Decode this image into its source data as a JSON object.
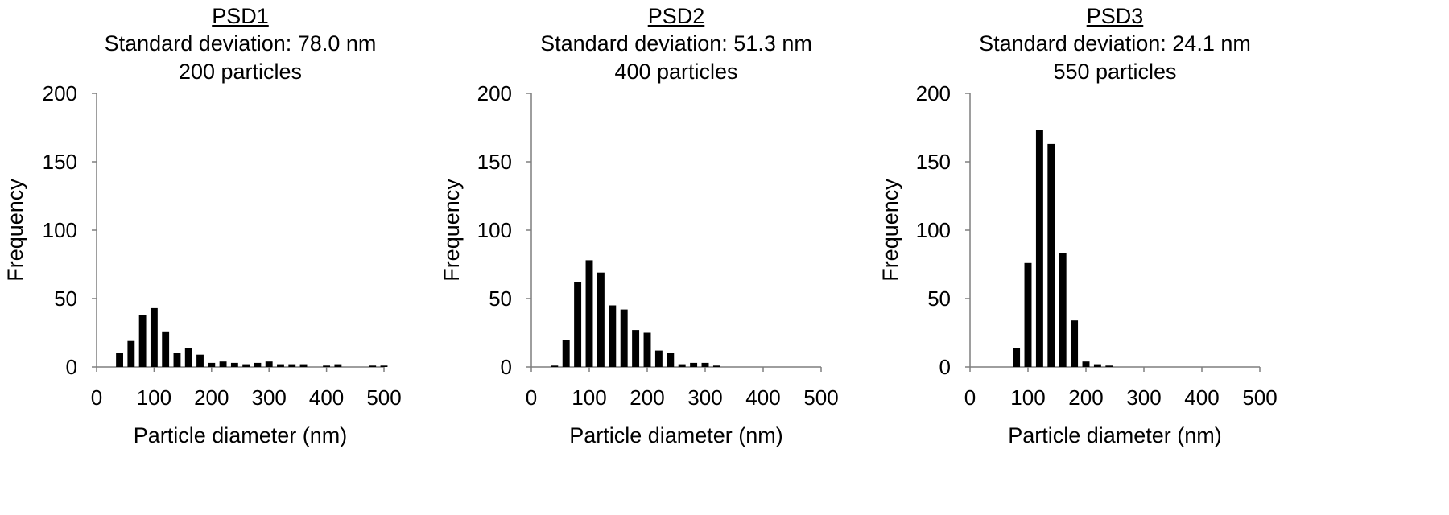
{
  "chart_data": [
    {
      "type": "bar",
      "title": "PSD1",
      "subtitle_lines": [
        "Standard deviation: 78.0 nm",
        "200 particles"
      ],
      "xlabel": "Particle diameter (nm)",
      "ylabel": "Frequency",
      "xlim": [
        0,
        500
      ],
      "ylim": [
        0,
        200
      ],
      "xticks": [
        "0",
        "100",
        "200",
        "300",
        "400",
        "500"
      ],
      "yticks": [
        "0",
        "50",
        "100",
        "150",
        "200"
      ],
      "grid": false,
      "bar_color": "#000000",
      "x": [
        40,
        60,
        80,
        100,
        120,
        140,
        160,
        180,
        200,
        220,
        240,
        260,
        280,
        300,
        320,
        340,
        360,
        380,
        400,
        420,
        440,
        460,
        480,
        500
      ],
      "values": [
        10,
        19,
        38,
        43,
        26,
        10,
        14,
        9,
        3,
        4,
        3,
        2,
        3,
        4,
        2,
        2,
        2,
        0,
        1,
        2,
        0,
        0,
        1,
        1
      ]
    },
    {
      "type": "bar",
      "title": "PSD2",
      "subtitle_lines": [
        "Standard deviation: 51.3 nm",
        "400 particles"
      ],
      "xlabel": "Particle diameter (nm)",
      "ylabel": "Frequency",
      "xlim": [
        0,
        500
      ],
      "ylim": [
        0,
        200
      ],
      "xticks": [
        "0",
        "100",
        "200",
        "300",
        "400",
        "500"
      ],
      "yticks": [
        "0",
        "50",
        "100",
        "150",
        "200"
      ],
      "grid": false,
      "bar_color": "#000000",
      "x": [
        40,
        60,
        80,
        100,
        120,
        140,
        160,
        180,
        200,
        220,
        240,
        260,
        280,
        300,
        320
      ],
      "values": [
        1,
        20,
        62,
        78,
        69,
        45,
        42,
        27,
        25,
        12,
        10,
        2,
        3,
        3,
        1
      ]
    },
    {
      "type": "bar",
      "title": "PSD3",
      "subtitle_lines": [
        "Standard deviation: 24.1 nm",
        "550 particles"
      ],
      "xlabel": "Particle diameter (nm)",
      "ylabel": "Frequency",
      "xlim": [
        0,
        500
      ],
      "ylim": [
        0,
        200
      ],
      "xticks": [
        "0",
        "100",
        "200",
        "300",
        "400",
        "500"
      ],
      "yticks": [
        "0",
        "50",
        "100",
        "150",
        "200"
      ],
      "grid": false,
      "bar_color": "#000000",
      "x": [
        80,
        100,
        120,
        140,
        160,
        180,
        200,
        220,
        240
      ],
      "values": [
        14,
        76,
        173,
        163,
        83,
        34,
        4,
        2,
        1
      ]
    }
  ]
}
